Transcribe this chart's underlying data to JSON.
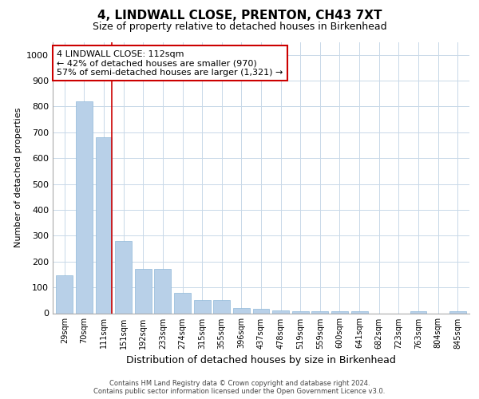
{
  "title": "4, LINDWALL CLOSE, PRENTON, CH43 7XT",
  "subtitle": "Size of property relative to detached houses in Birkenhead",
  "xlabel": "Distribution of detached houses by size in Birkenhead",
  "ylabel": "Number of detached properties",
  "footer_line1": "Contains HM Land Registry data © Crown copyright and database right 2024.",
  "footer_line2": "Contains public sector information licensed under the Open Government Licence v3.0.",
  "categories": [
    "29sqm",
    "70sqm",
    "111sqm",
    "151sqm",
    "192sqm",
    "233sqm",
    "274sqm",
    "315sqm",
    "355sqm",
    "396sqm",
    "437sqm",
    "478sqm",
    "519sqm",
    "559sqm",
    "600sqm",
    "641sqm",
    "682sqm",
    "723sqm",
    "763sqm",
    "804sqm",
    "845sqm"
  ],
  "values": [
    148,
    820,
    680,
    280,
    170,
    170,
    78,
    52,
    52,
    20,
    18,
    10,
    8,
    8,
    8,
    8,
    0,
    0,
    8,
    0,
    8
  ],
  "bar_color": "#b8d0e8",
  "bar_edge_color": "#90b8d8",
  "vline_x_index": 2.42,
  "vline_color": "#cc0000",
  "annotation_text": "4 LINDWALL CLOSE: 112sqm\n← 42% of detached houses are smaller (970)\n57% of semi-detached houses are larger (1,321) →",
  "annotation_box_color": "#ffffff",
  "annotation_box_edge_color": "#cc0000",
  "ylim": [
    0,
    1050
  ],
  "yticks": [
    0,
    100,
    200,
    300,
    400,
    500,
    600,
    700,
    800,
    900,
    1000
  ],
  "bg_color": "#ffffff",
  "grid_color": "#c8d8e8",
  "title_fontsize": 11,
  "subtitle_fontsize": 9,
  "xlabel_fontsize": 9,
  "ylabel_fontsize": 8,
  "annotation_fontsize": 8
}
